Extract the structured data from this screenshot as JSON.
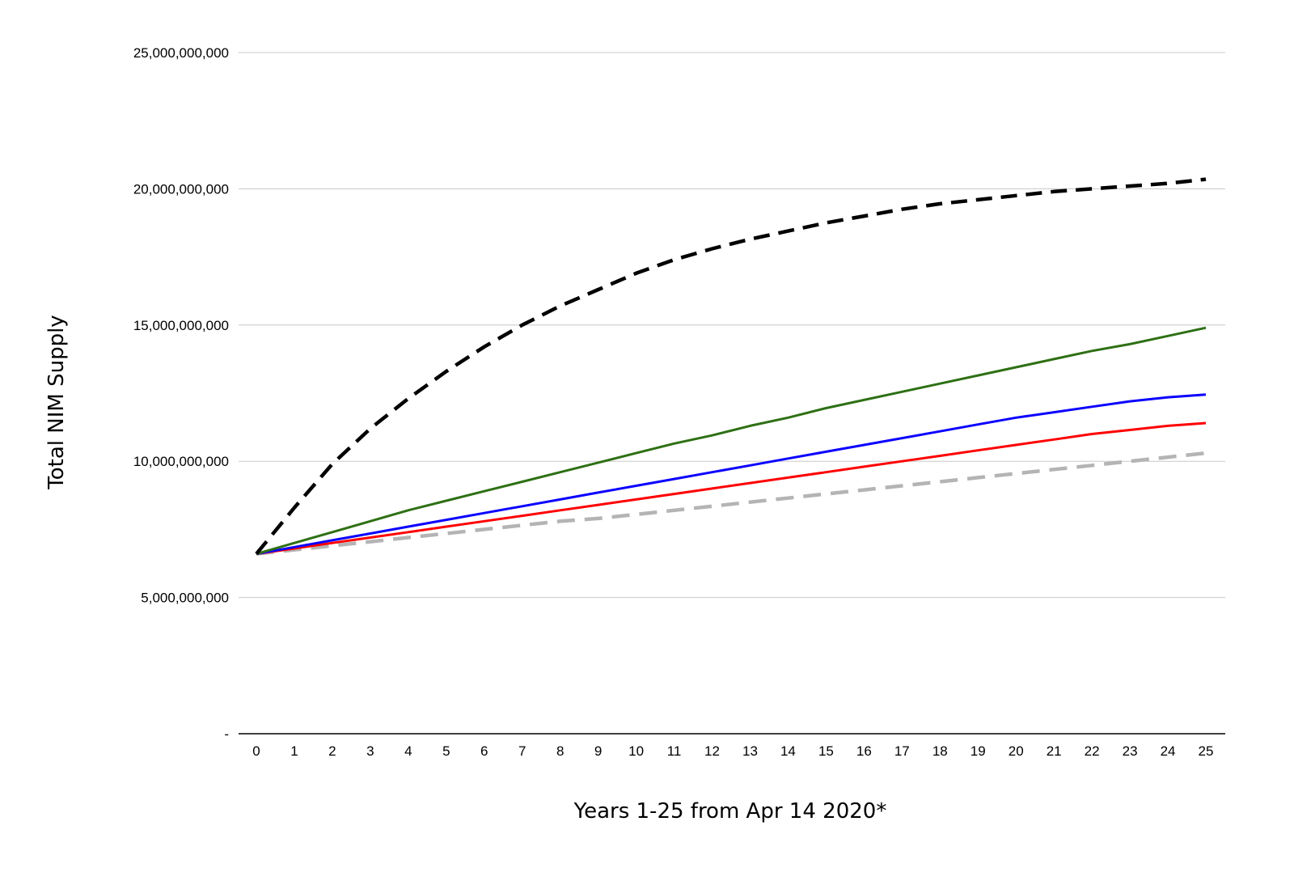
{
  "chart_data": {
    "type": "line",
    "title": "",
    "xlabel": "Years 1-25 from Apr 14 2020*",
    "ylabel": "Total NIM Supply",
    "x": [
      0,
      1,
      2,
      3,
      4,
      5,
      6,
      7,
      8,
      9,
      10,
      11,
      12,
      13,
      14,
      15,
      16,
      17,
      18,
      19,
      20,
      21,
      22,
      23,
      24,
      25
    ],
    "xlim": [
      0,
      25
    ],
    "ylim": [
      0,
      25000000000
    ],
    "y_ticks": [
      0,
      5000000000,
      10000000000,
      15000000000,
      20000000000,
      25000000000
    ],
    "y_tick_labels": [
      "-",
      "5,000,000,000",
      "10,000,000,000",
      "15,000,000,000",
      "20,000,000,000",
      "25,000,000,000"
    ],
    "grid": true,
    "legend": "none",
    "series": [
      {
        "name": "black-dashed",
        "color": "#000000",
        "dashed": true,
        "values": [
          6600000000,
          8300000000,
          9900000000,
          11200000000,
          12300000000,
          13300000000,
          14200000000,
          15000000000,
          15700000000,
          16300000000,
          16900000000,
          17400000000,
          17800000000,
          18150000000,
          18450000000,
          18750000000,
          19000000000,
          19250000000,
          19450000000,
          19600000000,
          19750000000,
          19900000000,
          20000000000,
          20100000000,
          20200000000,
          20350000000
        ]
      },
      {
        "name": "green",
        "color": "#2e7014",
        "dashed": false,
        "values": [
          6600000000,
          7000000000,
          7400000000,
          7800000000,
          8200000000,
          8550000000,
          8900000000,
          9250000000,
          9600000000,
          9950000000,
          10300000000,
          10650000000,
          10950000000,
          11300000000,
          11600000000,
          11950000000,
          12250000000,
          12550000000,
          12850000000,
          13150000000,
          13450000000,
          13750000000,
          14050000000,
          14300000000,
          14600000000,
          14900000000
        ]
      },
      {
        "name": "blue",
        "color": "#0b00ff",
        "dashed": false,
        "values": [
          6600000000,
          6850000000,
          7100000000,
          7350000000,
          7600000000,
          7850000000,
          8100000000,
          8350000000,
          8600000000,
          8850000000,
          9100000000,
          9350000000,
          9600000000,
          9850000000,
          10100000000,
          10350000000,
          10600000000,
          10850000000,
          11100000000,
          11350000000,
          11600000000,
          11800000000,
          12000000000,
          12200000000,
          12350000000,
          12450000000
        ]
      },
      {
        "name": "red",
        "color": "#ff0000",
        "dashed": false,
        "values": [
          6600000000,
          6800000000,
          7000000000,
          7200000000,
          7400000000,
          7600000000,
          7800000000,
          8000000000,
          8200000000,
          8400000000,
          8600000000,
          8800000000,
          9000000000,
          9200000000,
          9400000000,
          9600000000,
          9800000000,
          10000000000,
          10200000000,
          10400000000,
          10600000000,
          10800000000,
          11000000000,
          11150000000,
          11300000000,
          11400000000
        ]
      },
      {
        "name": "gray-dashed",
        "color": "#b4b4b4",
        "dashed": true,
        "values": [
          6600000000,
          6750000000,
          6900000000,
          7050000000,
          7200000000,
          7350000000,
          7500000000,
          7650000000,
          7800000000,
          7900000000,
          8050000000,
          8200000000,
          8350000000,
          8500000000,
          8650000000,
          8800000000,
          8950000000,
          9100000000,
          9250000000,
          9400000000,
          9550000000,
          9700000000,
          9850000000,
          10000000000,
          10150000000,
          10300000000
        ]
      }
    ]
  }
}
